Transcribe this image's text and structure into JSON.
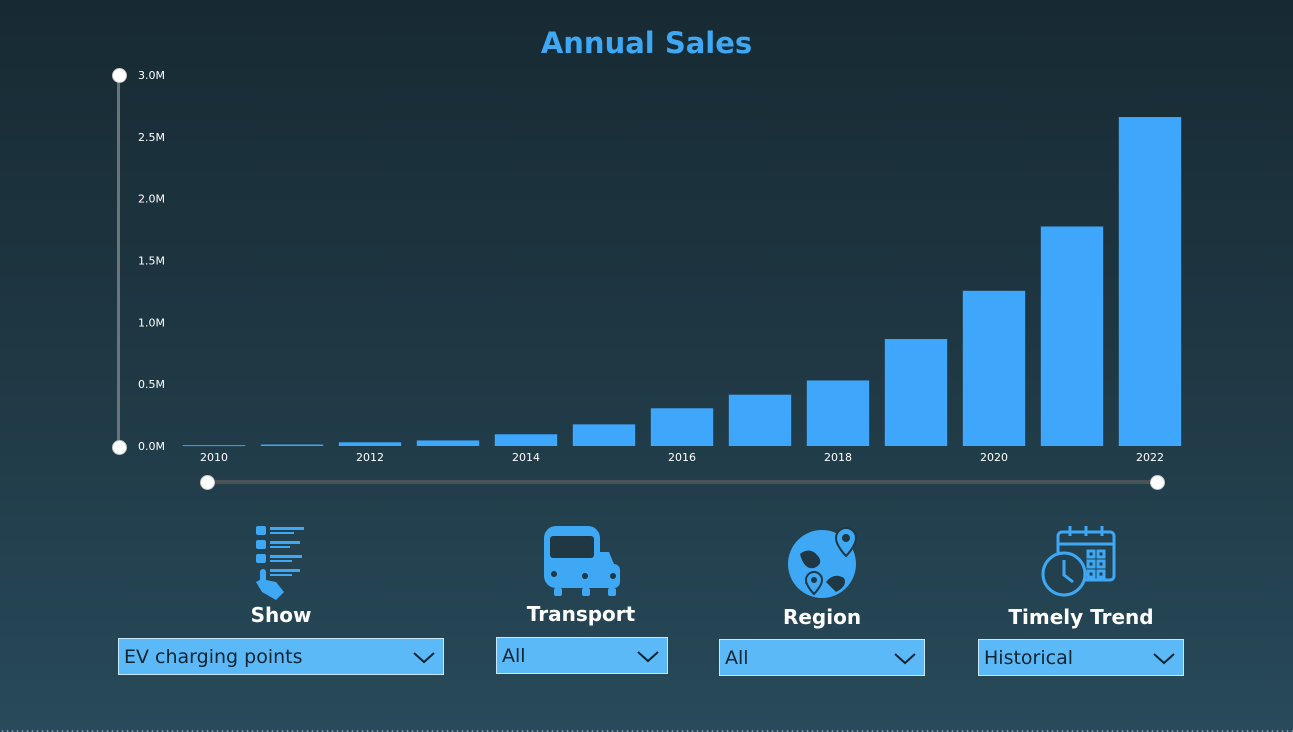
{
  "chart_data": {
    "type": "bar",
    "title": "Annual Sales",
    "categories": [
      "2010",
      "2011",
      "2012",
      "2013",
      "2014",
      "2015",
      "2016",
      "2017",
      "2018",
      "2019",
      "2020",
      "2021",
      "2022"
    ],
    "x_tick_labels": [
      "2010",
      "2012",
      "2014",
      "2016",
      "2018",
      "2020",
      "2022"
    ],
    "values": [
      7000,
      12000,
      30000,
      45000,
      95000,
      175000,
      305000,
      415000,
      530000,
      865000,
      1255000,
      1775000,
      2660000
    ],
    "y_tick_labels": [
      "0.0M",
      "0.5M",
      "1.0M",
      "1.5M",
      "2.0M",
      "2.5M",
      "3.0M"
    ],
    "ylim": [
      0,
      3000000
    ],
    "grid": false,
    "colors": {
      "bar": "#3ea6fb",
      "title": "#3ea8f5"
    }
  },
  "filters": [
    {
      "label": "Show",
      "value": "EV charging points",
      "icon": "list-touch-icon"
    },
    {
      "label": "Transport",
      "value": "All",
      "icon": "bus-car-icon"
    },
    {
      "label": "Region",
      "value": "All",
      "icon": "globe-pin-icon"
    },
    {
      "label": "Timely Trend",
      "value": "Historical",
      "icon": "calendar-clock-icon"
    }
  ]
}
